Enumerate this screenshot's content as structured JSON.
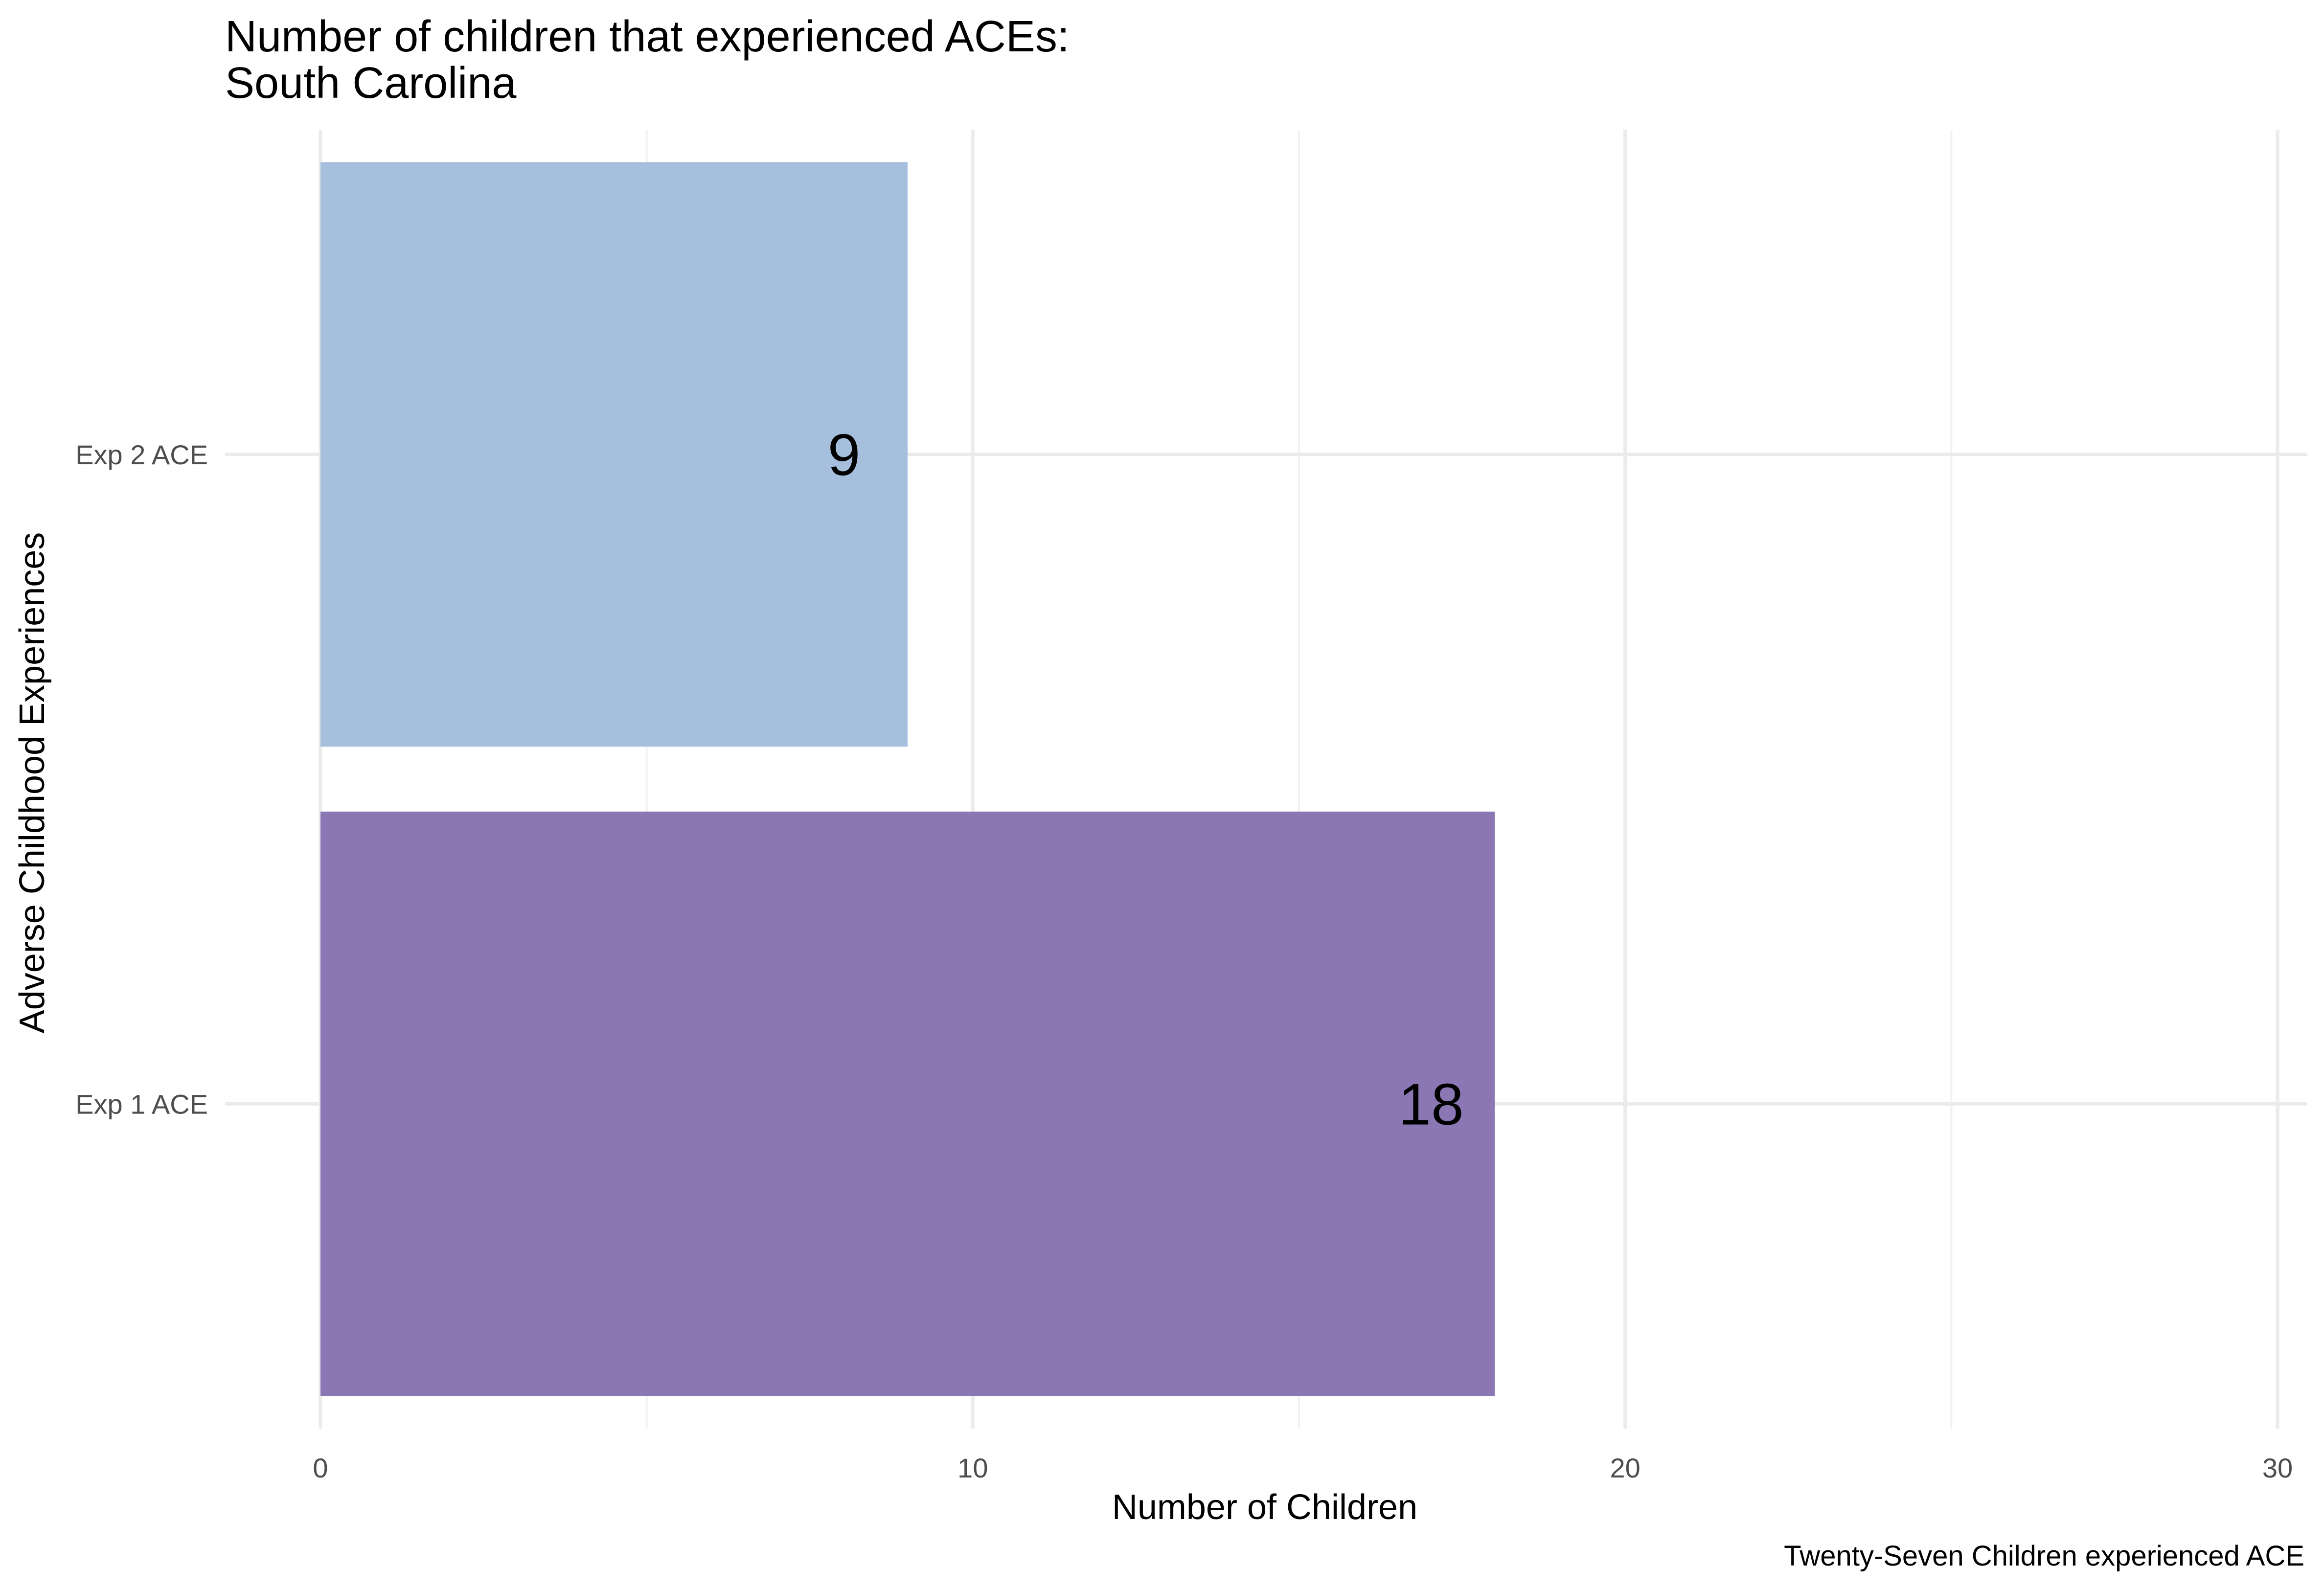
{
  "chart_data": {
    "type": "bar",
    "orientation": "horizontal",
    "title_line1": "Number of children that experienced ACEs:",
    "title_line2": "South Carolina",
    "xlabel": "Number of Children",
    "ylabel": "Adverse Childhood Experiences",
    "caption": "Twenty-Seven Children experienced ACE",
    "categories": [
      "Exp 1 ACE",
      "Exp 2 ACE"
    ],
    "values": [
      18,
      9
    ],
    "value_labels": [
      "18",
      "9"
    ],
    "colors": [
      "#8c77b5",
      "#a5bfdc"
    ],
    "xlim": [
      0,
      30
    ],
    "x_ticks": [
      0,
      10,
      20,
      30
    ],
    "x_tick_labels": [
      "0",
      "10",
      "20",
      "30"
    ],
    "grid": true,
    "legend": "none"
  }
}
